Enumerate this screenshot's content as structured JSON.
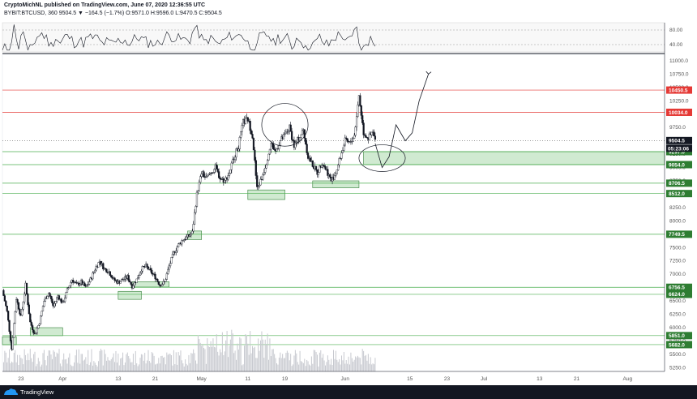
{
  "header": {
    "line1": "CryptoMichNL published on TradingView.com, June 07, 2020 12:36:55 UTC",
    "line2": "BYBIT:BTCUSD, 360  9504.5  ▼ −164.5 (−1.7%)  O:9571.0  H:9596.0  L:9470.5  C:9504.5"
  },
  "footer": {
    "brand": "TradingView"
  },
  "colors": {
    "up": "#ffffff",
    "down": "#131722",
    "support": "#4caf50",
    "resistance": "#e53935",
    "zone": "#c8e6c9",
    "current": "#131722"
  },
  "chart_data": {
    "type": "candlestick",
    "symbol": "BYBIT:BTCUSD",
    "timeframe": "360",
    "ylim": [
      5180,
      11120
    ],
    "y_ticks": [
      5250,
      5500,
      5750,
      6000,
      6250,
      6500,
      6750,
      7000,
      7250,
      7500,
      7750,
      8000,
      8250,
      8500,
      8750,
      9000,
      9250,
      9500,
      9750,
      10000,
      10250,
      10500,
      10750,
      11000
    ],
    "x_ticks": [
      "23",
      "Apr",
      "13",
      "21",
      "May",
      "11",
      "19",
      "Jun",
      "15",
      "23",
      "Jul",
      "13",
      "21",
      "Aug"
    ],
    "x_tick_days": [
      -9,
      0,
      12,
      20,
      30,
      40,
      48,
      61,
      75,
      83,
      91,
      103,
      111,
      122
    ],
    "x_range_days": [
      -13,
      130
    ],
    "last_bar_day": 67.5,
    "price_path": [
      [
        -13,
        6700
      ],
      [
        -12,
        6300
      ],
      [
        -11,
        5600
      ],
      [
        -10,
        6550
      ],
      [
        -9,
        6200
      ],
      [
        -8,
        6800
      ],
      [
        -7,
        6100
      ],
      [
        -6,
        5870
      ],
      [
        -5,
        6100
      ],
      [
        -4,
        6500
      ],
      [
        -3,
        6650
      ],
      [
        -2,
        6400
      ],
      [
        -1,
        6600
      ],
      [
        0,
        6450
      ],
      [
        1,
        6700
      ],
      [
        2,
        6900
      ],
      [
        3,
        6800
      ],
      [
        4,
        6850
      ],
      [
        5,
        6750
      ],
      [
        6,
        6900
      ],
      [
        7,
        7100
      ],
      [
        8,
        7250
      ],
      [
        9,
        7100
      ],
      [
        10,
        7050
      ],
      [
        11,
        6900
      ],
      [
        12,
        6850
      ],
      [
        13,
        6900
      ],
      [
        14,
        6950
      ],
      [
        15,
        6780
      ],
      [
        16,
        6900
      ],
      [
        17,
        7100
      ],
      [
        18,
        7150
      ],
      [
        19,
        7050
      ],
      [
        20,
        6950
      ],
      [
        21,
        6800
      ],
      [
        22,
        6850
      ],
      [
        23,
        7150
      ],
      [
        24,
        7400
      ],
      [
        25,
        7550
      ],
      [
        26,
        7650
      ],
      [
        27,
        7700
      ],
      [
        28,
        7780
      ],
      [
        29,
        8500
      ],
      [
        30,
        8900
      ],
      [
        31,
        8800
      ],
      [
        32,
        8900
      ],
      [
        33,
        9000
      ],
      [
        34,
        8800
      ],
      [
        35,
        8750
      ],
      [
        36,
        8900
      ],
      [
        37,
        9200
      ],
      [
        38,
        9400
      ],
      [
        39,
        9850
      ],
      [
        40,
        9900
      ],
      [
        41,
        9600
      ],
      [
        42,
        8600
      ],
      [
        43,
        8800
      ],
      [
        44,
        9100
      ],
      [
        45,
        9450
      ],
      [
        46,
        9300
      ],
      [
        47,
        9500
      ],
      [
        48,
        9600
      ],
      [
        49,
        9750
      ],
      [
        50,
        9400
      ],
      [
        51,
        9550
      ],
      [
        52,
        9700
      ],
      [
        53,
        9200
      ],
      [
        54,
        9050
      ],
      [
        55,
        8900
      ],
      [
        56,
        9100
      ],
      [
        57,
        8950
      ],
      [
        58,
        8750
      ],
      [
        59,
        8900
      ],
      [
        60,
        9200
      ],
      [
        61,
        9500
      ],
      [
        62,
        9450
      ],
      [
        63,
        9600
      ],
      [
        64,
        10350
      ],
      [
        65,
        9650
      ],
      [
        66,
        9550
      ],
      [
        67,
        9650
      ],
      [
        67.5,
        9504.5
      ]
    ],
    "horizontal_lines": [
      {
        "price": 10450.5,
        "label": "10450.5",
        "kind": "resistance"
      },
      {
        "price": 10034.0,
        "label": "10034.0",
        "kind": "resistance"
      },
      {
        "price": 9504.5,
        "label": "9504.5",
        "kind": "current"
      },
      {
        "price": 9297.0,
        "label": "9297.0",
        "kind": "support"
      },
      {
        "price": 9054.0,
        "label": "9054.0",
        "kind": "support"
      },
      {
        "price": 8706.5,
        "label": "8706.5",
        "kind": "support"
      },
      {
        "price": 8512.0,
        "label": "8512.0",
        "kind": "support"
      },
      {
        "price": 7749.5,
        "label": "7749.5",
        "kind": "support"
      },
      {
        "price": 6756.5,
        "label": "6756.5",
        "kind": "support"
      },
      {
        "price": 6624.0,
        "label": "6624.0",
        "kind": "support"
      },
      {
        "price": 5851.0,
        "label": "5851.0",
        "kind": "support"
      },
      {
        "price": 5682.0,
        "label": "5682.0",
        "kind": "support"
      }
    ],
    "countdown_label": "05:23:06",
    "zones": [
      {
        "from_day": -13,
        "to_day": -10,
        "low": 5680,
        "high": 5830
      },
      {
        "from_day": -7,
        "to_day": 0,
        "low": 5850,
        "high": 6000
      },
      {
        "from_day": 12,
        "to_day": 17,
        "low": 6530,
        "high": 6680
      },
      {
        "from_day": 15,
        "to_day": 23,
        "low": 6760,
        "high": 6860
      },
      {
        "from_day": 27,
        "to_day": 30,
        "low": 7650,
        "high": 7810
      },
      {
        "from_day": 40,
        "to_day": 48,
        "low": 8400,
        "high": 8580
      },
      {
        "from_day": 54,
        "to_day": 64,
        "low": 8620,
        "high": 8750
      },
      {
        "from_day": 65,
        "to_day": 130,
        "low": 9054,
        "high": 9297
      }
    ],
    "oscillator": {
      "levels": [
        "80.00",
        "40.00"
      ],
      "range": [
        20,
        100
      ]
    }
  }
}
